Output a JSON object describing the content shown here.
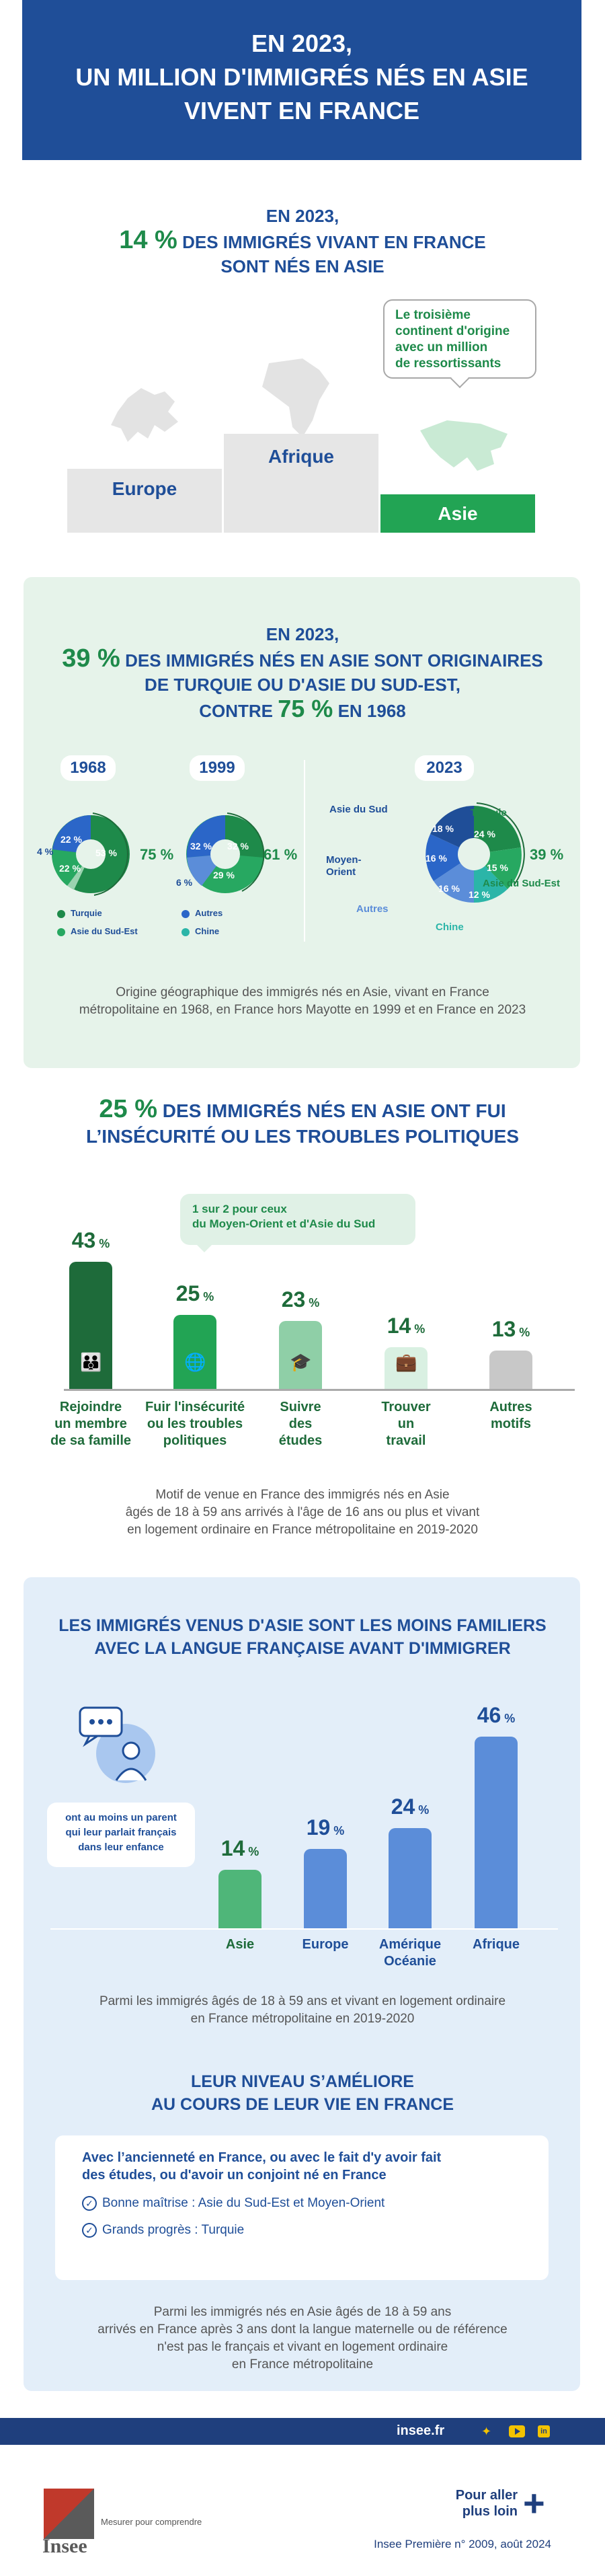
{
  "header": {
    "line1": "EN 2023,",
    "line2": "UN MILLION D'IMMIGRÉS NÉS EN ASIE",
    "line3": "VIVENT EN FRANCE"
  },
  "section1": {
    "title_line1": "EN 2023,",
    "title_pct": "14 %",
    "title_line2_rest": "DES IMMIGRÉS VIVANT EN FRANCE",
    "title_line3": "SONT NÉS EN ASIE",
    "bubble": [
      "Le troisième",
      "continent d'origine",
      "avec  un million",
      "de ressortissants"
    ],
    "podium": {
      "europe": "Europe",
      "afrique": "Afrique",
      "asie": "Asie"
    }
  },
  "section2": {
    "title_line1": "EN 2023,",
    "title_pct": "39 %",
    "title_line2_rest": "DES IMMIGRÉS NÉS EN ASIE SONT ORIGINAIRES",
    "title_line3": "DE TURQUIE OU D'ASIE DU SUD-EST,",
    "title_line4_a": "CONTRE",
    "title_line4_pct": "75 %",
    "title_line4_b": "EN 1968",
    "years": [
      "1968",
      "1999",
      "2023"
    ],
    "donut1968": {
      "sud_est": "53 %",
      "turquie": "22 %",
      "asie_sud": "22 %",
      "outside": "4 %",
      "total": "75 %"
    },
    "donut1999": {
      "a": "32 %",
      "b": "32 %",
      "c": "29 %",
      "outside": "6 %",
      "total": "61 %"
    },
    "donut2023": {
      "turquie": "24 %",
      "sud_est": "15 %",
      "chine": "12 %",
      "autres": "16 %",
      "moyen_orient": "16 %",
      "asie_sud": "18 %",
      "total": "39 %"
    },
    "labels2023": {
      "asie_sud": "Asie du Sud",
      "turquie": "Turquie",
      "moyen_orient": "Moyen-Orient",
      "asie_sud_est": "Asie du Sud-Est",
      "autres": "Autres",
      "chine": "Chine"
    },
    "legend": {
      "turquie": "Turquie",
      "autres": "Autres",
      "sud_est": "Asie du Sud-Est",
      "chine": "Chine"
    },
    "note_line1": "Origine géographique des immigrés nés en Asie, vivant en France",
    "note_line2": "métropolitaine en 1968, en France hors Mayotte en 1999 et en France en 2023"
  },
  "section3": {
    "title_pct": "25 %",
    "title_line1_rest": "DES IMMIGRÉS NÉS EN ASIE ONT FUI",
    "title_line2": "L’INSÉCURITÉ OU LES TROUBLES POLITIQUES",
    "bubble_line1": "1 sur 2 pour ceux",
    "bubble_line2": "du  Moyen-Orient et d'Asie du Sud",
    "chart_data": {
      "type": "bar",
      "categories": [
        "Rejoindre un membre de sa famille",
        "Fuir l'insécurité ou les troubles politiques",
        "Suivre des études",
        "Trouver un travail",
        "Autres motifs"
      ],
      "values": [
        43,
        25,
        23,
        14,
        13
      ]
    },
    "pcts": [
      "43",
      "25",
      "23",
      "14",
      "13"
    ],
    "pct_sign": "%",
    "cats": [
      [
        "Rejoindre",
        "un membre",
        "de sa famille"
      ],
      [
        "Fuir l'insécurité",
        "ou les troubles",
        "politiques"
      ],
      [
        "Suivre",
        "des",
        "études"
      ],
      [
        "Trouver",
        "un",
        "travail"
      ],
      [
        "Autres",
        "motifs"
      ]
    ],
    "note_line1": "Motif de venue en France des immigrés nés en Asie",
    "note_line2": "âgés de 18 à 59 ans arrivés à l'âge de 16 ans ou plus et vivant",
    "note_line3": "en logement ordinaire en France métropolitaine en 2019-2020"
  },
  "section4": {
    "title_line1": "LES IMMIGRÉS VENUS D'ASIE SONT LES MOINS FAMILIERS",
    "title_line2": "AVEC LA LANGUE FRANÇAISE AVANT D'IMMIGRER",
    "callout": [
      "ont au moins un parent",
      "qui leur parlait français",
      "dans leur enfance"
    ],
    "chart_data": {
      "type": "bar",
      "categories": [
        "Asie",
        "Europe",
        "Amérique Océanie",
        "Afrique"
      ],
      "values": [
        14,
        19,
        24,
        46
      ]
    },
    "pcts": [
      "14",
      "19",
      "24",
      "46"
    ],
    "pct_sign": "%",
    "cats": [
      [
        "Asie"
      ],
      [
        "Europe"
      ],
      [
        "Amérique",
        "Océanie"
      ],
      [
        "Afrique"
      ]
    ],
    "note_line1": "Parmi les immigrés âgés de 18 à 59 ans et vivant en logement ordinaire",
    "note_line2": "en France métropolitaine en 2019-2020",
    "sub_title_line1": "LEUR NIVEAU S’AMÉLIORE",
    "sub_title_line2": "AU COURS DE LEUR VIE EN FRANCE",
    "box_line1": "Avec l’ancienneté en France, ou avec le fait d'y avoir fait",
    "box_line2": "des études, ou d'avoir un conjoint né en France",
    "item1": "Bonne maîtrise : Asie du Sud-Est et Moyen-Orient",
    "item2": "Grands progrès : Turquie",
    "note2_line1": "Parmi les immigrés nés en Asie âgés de 18 à 59 ans",
    "note2_line2": "arrivés en France après 3 ans dont la langue maternelle ou de référence",
    "note2_line3": "n'est pas le français et vivant en logement ordinaire",
    "note2_line4": "en France métropolitaine"
  },
  "footer": {
    "site": "insee.fr",
    "logo": "Insee",
    "tagline": "Mesurer pour comprendre",
    "pour_aller_1": "Pour aller",
    "pour_aller_2": "plus loin",
    "ref": "Insee Première n° 2009, août 2024"
  },
  "colors": {
    "blue": "#1f4e98",
    "green": "#1e8a4a",
    "dark_green": "#1e6b3a",
    "light_green_bg": "#e6f3ea",
    "light_blue_bg": "#e3eef9",
    "bar_blue": "#5b8dd9"
  }
}
